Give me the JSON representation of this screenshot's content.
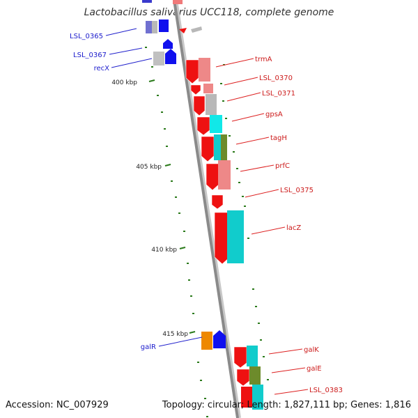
{
  "title": "Lactobacillus salivarius UCC118, complete genome",
  "footer": {
    "accession": "Accession: NC_007929",
    "summary": "Topology: circular; Length: 1,827,111 bp; Genes: 1,816"
  },
  "colors": {
    "backbone": "#8a8a8a",
    "tick": "#2a7a1a",
    "label_left": "#1a1acc",
    "label_right": "#cc1a1a",
    "leader_left": "#2020cc",
    "leader_right": "#dd2020"
  },
  "scale_labels": [
    "400 kbp",
    "405 kbp",
    "410 kbp",
    "415 kbp"
  ],
  "left_genes": [
    {
      "label": "LSL_0365"
    },
    {
      "label": "LSL_0367"
    },
    {
      "label": "recX"
    },
    {
      "label": "galR"
    }
  ],
  "right_genes": [
    {
      "label": "trmA"
    },
    {
      "label": "LSL_0370"
    },
    {
      "label": "LSL_0371"
    },
    {
      "label": "gpsA"
    },
    {
      "label": "tagH"
    },
    {
      "label": "prfC"
    },
    {
      "label": "LSL_0375"
    },
    {
      "label": "lacZ"
    },
    {
      "label": "galK"
    },
    {
      "label": "galE"
    },
    {
      "label": "LSL_0383"
    }
  ]
}
